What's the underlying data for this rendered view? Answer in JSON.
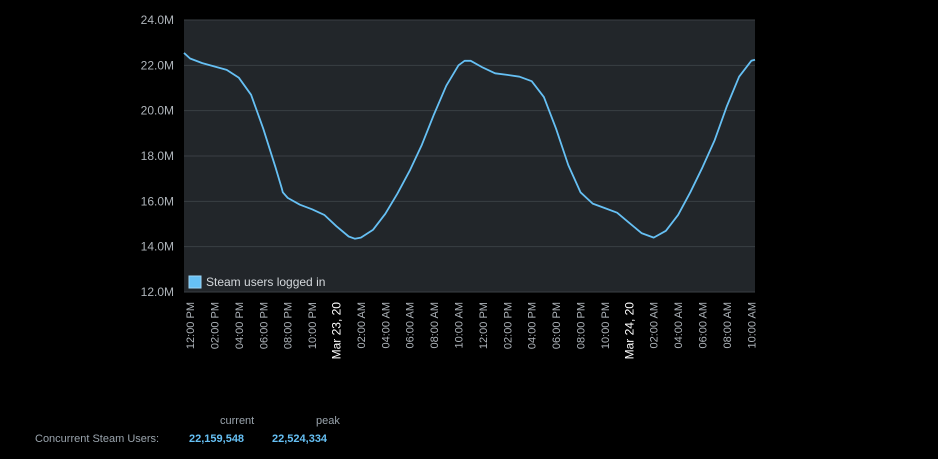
{
  "chart_data": {
    "type": "line",
    "title": "",
    "xlabel": "",
    "ylabel": "",
    "ylim": [
      12000000,
      24000000
    ],
    "y_ticks": [
      {
        "value": 24000000,
        "label": "24.0M"
      },
      {
        "value": 22000000,
        "label": "22.0M"
      },
      {
        "value": 20000000,
        "label": "20.0M"
      },
      {
        "value": 18000000,
        "label": "18.0M"
      },
      {
        "value": 16000000,
        "label": "16.0M"
      },
      {
        "value": 14000000,
        "label": "14.0M"
      },
      {
        "value": 12000000,
        "label": "12.0M"
      }
    ],
    "x_range_hours": [
      -0.5,
      46.3
    ],
    "x_ticks": [
      {
        "hour": 0,
        "label": "12:00 PM",
        "major": false
      },
      {
        "hour": 2,
        "label": "02:00 PM",
        "major": false
      },
      {
        "hour": 4,
        "label": "04:00 PM",
        "major": false
      },
      {
        "hour": 6,
        "label": "06:00 PM",
        "major": false
      },
      {
        "hour": 8,
        "label": "08:00 PM",
        "major": false
      },
      {
        "hour": 10,
        "label": "10:00 PM",
        "major": false
      },
      {
        "hour": 12,
        "label": "Mar 23, 20",
        "major": true
      },
      {
        "hour": 14,
        "label": "02:00 AM",
        "major": false
      },
      {
        "hour": 16,
        "label": "04:00 AM",
        "major": false
      },
      {
        "hour": 18,
        "label": "06:00 AM",
        "major": false
      },
      {
        "hour": 20,
        "label": "08:00 AM",
        "major": false
      },
      {
        "hour": 22,
        "label": "10:00 AM",
        "major": false
      },
      {
        "hour": 24,
        "label": "12:00 PM",
        "major": false
      },
      {
        "hour": 26,
        "label": "02:00 PM",
        "major": false
      },
      {
        "hour": 28,
        "label": "04:00 PM",
        "major": false
      },
      {
        "hour": 30,
        "label": "06:00 PM",
        "major": false
      },
      {
        "hour": 32,
        "label": "08:00 PM",
        "major": false
      },
      {
        "hour": 34,
        "label": "10:00 PM",
        "major": false
      },
      {
        "hour": 36,
        "label": "Mar 24, 20",
        "major": true
      },
      {
        "hour": 38,
        "label": "02:00 AM",
        "major": false
      },
      {
        "hour": 40,
        "label": "04:00 AM",
        "major": false
      },
      {
        "hour": 42,
        "label": "06:00 AM",
        "major": false
      },
      {
        "hour": 44,
        "label": "08:00 AM",
        "major": false
      },
      {
        "hour": 46,
        "label": "10:00 AM",
        "major": false
      }
    ],
    "series": [
      {
        "name": "Steam users logged in",
        "color": "#66c0f4",
        "points": [
          [
            -0.5,
            22550000
          ],
          [
            0,
            22300000
          ],
          [
            1,
            22100000
          ],
          [
            2,
            21950000
          ],
          [
            3,
            21800000
          ],
          [
            4,
            21450000
          ],
          [
            5,
            20700000
          ],
          [
            6,
            19200000
          ],
          [
            7,
            17500000
          ],
          [
            7.5,
            16600000
          ],
          [
            7.6,
            16400000
          ],
          [
            8,
            16150000
          ],
          [
            9,
            15850000
          ],
          [
            10,
            15650000
          ],
          [
            11,
            15400000
          ],
          [
            12,
            14900000
          ],
          [
            13,
            14450000
          ],
          [
            13.5,
            14350000
          ],
          [
            14,
            14400000
          ],
          [
            15,
            14750000
          ],
          [
            16,
            15450000
          ],
          [
            17,
            16350000
          ],
          [
            18,
            17350000
          ],
          [
            19,
            18500000
          ],
          [
            20,
            19850000
          ],
          [
            21,
            21100000
          ],
          [
            22,
            22000000
          ],
          [
            22.5,
            22200000
          ],
          [
            23,
            22200000
          ],
          [
            24,
            21900000
          ],
          [
            25,
            21650000
          ],
          [
            26,
            21580000
          ],
          [
            27,
            21500000
          ],
          [
            28,
            21300000
          ],
          [
            29,
            20600000
          ],
          [
            30,
            19200000
          ],
          [
            31,
            17600000
          ],
          [
            32,
            16400000
          ],
          [
            33,
            15900000
          ],
          [
            34,
            15700000
          ],
          [
            35,
            15500000
          ],
          [
            36,
            15050000
          ],
          [
            37,
            14600000
          ],
          [
            38,
            14400000
          ],
          [
            39,
            14700000
          ],
          [
            40,
            15400000
          ],
          [
            41,
            16400000
          ],
          [
            42,
            17500000
          ],
          [
            43,
            18700000
          ],
          [
            44,
            20200000
          ],
          [
            45,
            21500000
          ],
          [
            46,
            22200000
          ],
          [
            46.3,
            22250000
          ]
        ]
      }
    ],
    "legend": "bottom-left",
    "grid": true
  },
  "stats": {
    "current_header": "current",
    "peak_header": "peak",
    "label": "Concurrent Steam Users:",
    "current_value": "22,159,548",
    "peak_value": "22,524,334"
  }
}
